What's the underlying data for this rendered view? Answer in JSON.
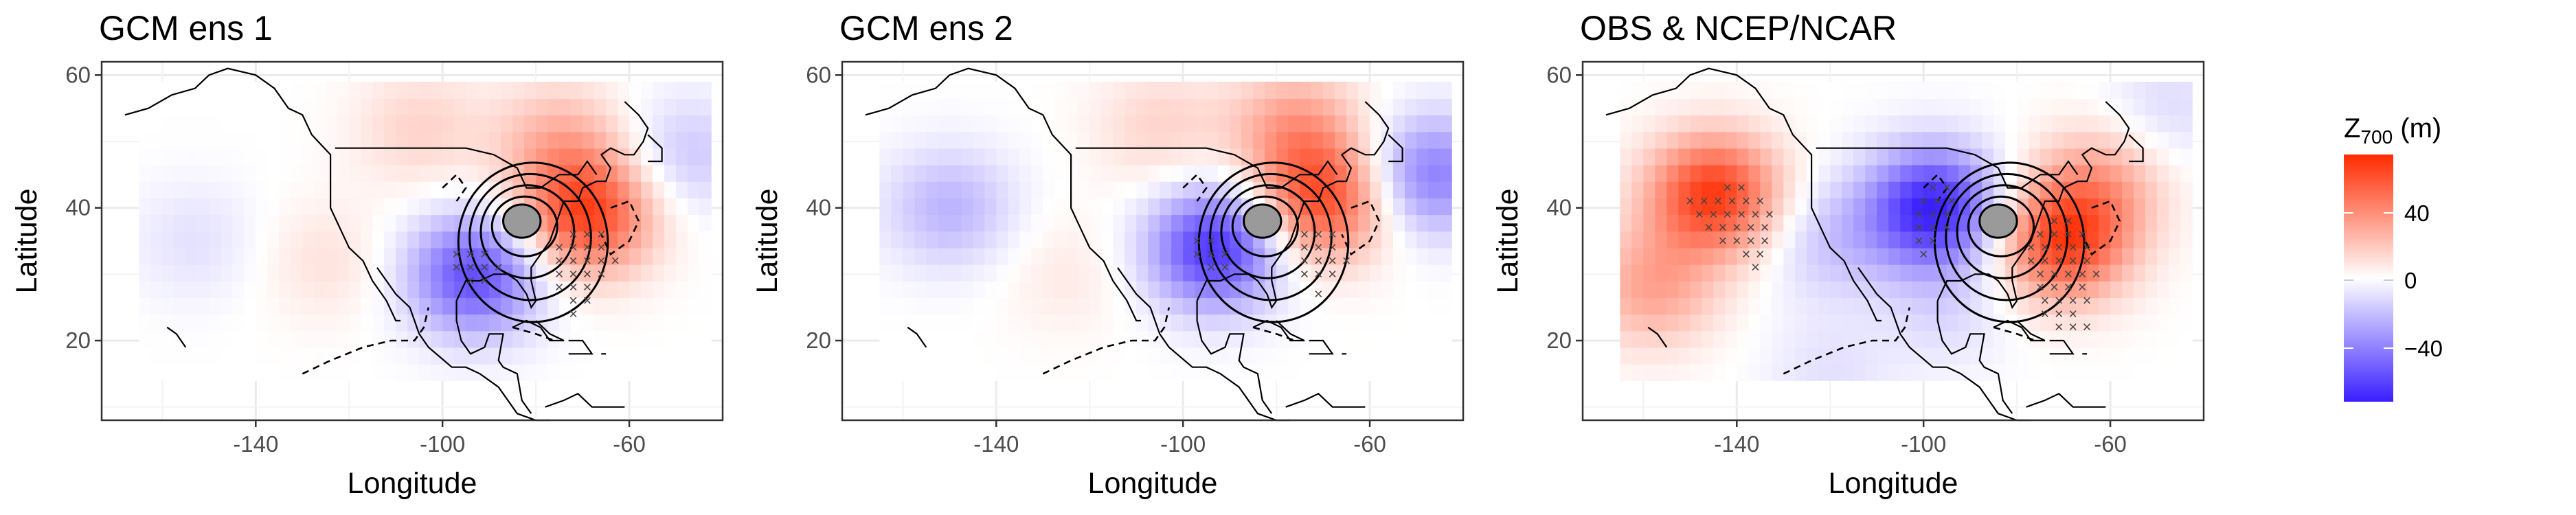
{
  "figure": {
    "x_tick_labels": [
      "-140",
      "-100",
      "-60"
    ],
    "y_tick_labels": [
      "60",
      "40",
      "20"
    ]
  },
  "legend": {
    "title_main": "Z",
    "title_sub": "700",
    "title_unit": " (m)",
    "labels": [
      "40",
      "0",
      "−40"
    ],
    "colors": {
      "high": "#ff2a00",
      "mid": "#ffffff",
      "low": "#3a1fff"
    }
  },
  "chart_data": [
    {
      "type": "heatmap",
      "title": "GCM ens 1",
      "xlabel": "Longitude",
      "ylabel": "Latitude",
      "xlim": [
        -173,
        -40
      ],
      "ylim": [
        8,
        62
      ],
      "x_ticks": [
        -140,
        -100,
        -60
      ],
      "y_ticks": [
        20,
        40,
        60
      ],
      "fill_range": [
        -60,
        60
      ],
      "anomaly_centers": [
        {
          "lon": -153,
          "lat": 35,
          "value": -8
        },
        {
          "lon": -125,
          "lat": 32,
          "value": 8
        },
        {
          "lon": -93,
          "lat": 30,
          "value": -48
        },
        {
          "lon": -69,
          "lat": 39,
          "value": 52
        },
        {
          "lon": -75,
          "lat": 50,
          "value": 20
        },
        {
          "lon": -48,
          "lat": 48,
          "value": -15
        },
        {
          "lon": -105,
          "lat": 52,
          "value": 12
        }
      ],
      "contour_center": {
        "lon": -83,
        "lat": 38
      },
      "significance": [
        {
          "row_lat": 33,
          "lons": [
            -97,
            -94,
            -91
          ]
        },
        {
          "row_lat": 31,
          "lons": [
            -97,
            -94,
            -91,
            -88
          ]
        },
        {
          "row_lat": 29,
          "lons": [
            -94,
            -91
          ]
        },
        {
          "row_lat": 36,
          "lons": [
            -72,
            -69,
            -66
          ]
        },
        {
          "row_lat": 34,
          "lons": [
            -75,
            -72,
            -69,
            -66
          ]
        },
        {
          "row_lat": 32,
          "lons": [
            -75,
            -72,
            -69,
            -66,
            -63
          ]
        },
        {
          "row_lat": 30,
          "lons": [
            -75,
            -72,
            -69,
            -66
          ]
        },
        {
          "row_lat": 28,
          "lons": [
            -75,
            -72,
            -69
          ]
        },
        {
          "row_lat": 26,
          "lons": [
            -72,
            -69
          ]
        },
        {
          "row_lat": 24,
          "lons": [
            -72
          ]
        }
      ]
    },
    {
      "type": "heatmap",
      "title": "GCM ens 2",
      "xlabel": "Longitude",
      "ylabel": "Latitude",
      "xlim": [
        -173,
        -40
      ],
      "ylim": [
        8,
        62
      ],
      "x_ticks": [
        -140,
        -100,
        -60
      ],
      "y_ticks": [
        20,
        40,
        60
      ],
      "fill_range": [
        -60,
        60
      ],
      "anomaly_centers": [
        {
          "lon": -150,
          "lat": 40,
          "value": -20
        },
        {
          "lon": -125,
          "lat": 30,
          "value": 6
        },
        {
          "lon": -93,
          "lat": 34,
          "value": -55
        },
        {
          "lon": -70,
          "lat": 41,
          "value": 48
        },
        {
          "lon": -76,
          "lat": 52,
          "value": 26
        },
        {
          "lon": -47,
          "lat": 45,
          "value": -35
        },
        {
          "lon": -105,
          "lat": 52,
          "value": 12
        }
      ],
      "contour_center": {
        "lon": -83,
        "lat": 38
      },
      "significance": [
        {
          "row_lat": 35,
          "lons": [
            -97,
            -94
          ]
        },
        {
          "row_lat": 33,
          "lons": [
            -97,
            -94,
            -91
          ]
        },
        {
          "row_lat": 31,
          "lons": [
            -94,
            -91
          ]
        },
        {
          "row_lat": 36,
          "lons": [
            -74,
            -71,
            -68
          ]
        },
        {
          "row_lat": 34,
          "lons": [
            -74,
            -71,
            -68
          ]
        },
        {
          "row_lat": 32,
          "lons": [
            -74,
            -71,
            -68,
            -65
          ]
        },
        {
          "row_lat": 30,
          "lons": [
            -74,
            -71,
            -68
          ]
        },
        {
          "row_lat": 27,
          "lons": [
            -71
          ]
        }
      ]
    },
    {
      "type": "heatmap",
      "title": "OBS & NCEP/NCAR",
      "xlabel": "Longitude",
      "ylabel": "Latitude",
      "xlim": [
        -173,
        -40
      ],
      "ylim": [
        8,
        62
      ],
      "x_ticks": [
        -140,
        -100,
        -60
      ],
      "y_ticks": [
        20,
        40,
        60
      ],
      "fill_range": [
        -60,
        60
      ],
      "anomaly_centers": [
        {
          "lon": -145,
          "lat": 42,
          "value": 55
        },
        {
          "lon": -158,
          "lat": 28,
          "value": 25
        },
        {
          "lon": -120,
          "lat": 35,
          "value": -15
        },
        {
          "lon": -98,
          "lat": 40,
          "value": -60
        },
        {
          "lon": -95,
          "lat": 25,
          "value": -10
        },
        {
          "lon": -70,
          "lat": 35,
          "value": 52
        },
        {
          "lon": -62,
          "lat": 44,
          "value": 22
        },
        {
          "lon": -120,
          "lat": 15,
          "value": -8
        },
        {
          "lon": -48,
          "lat": 55,
          "value": -10
        }
      ],
      "contour_center": {
        "lon": -84,
        "lat": 38
      },
      "significance": [
        {
          "row_lat": 43,
          "lons": [
            -142,
            -139
          ]
        },
        {
          "row_lat": 41,
          "lons": [
            -150,
            -147,
            -144,
            -141,
            -138,
            -135
          ]
        },
        {
          "row_lat": 39,
          "lons": [
            -148,
            -145,
            -142,
            -139,
            -136,
            -133
          ]
        },
        {
          "row_lat": 37,
          "lons": [
            -146,
            -143,
            -140,
            -137,
            -134
          ]
        },
        {
          "row_lat": 35,
          "lons": [
            -143,
            -140,
            -137,
            -134
          ]
        },
        {
          "row_lat": 33,
          "lons": [
            -138,
            -135
          ]
        },
        {
          "row_lat": 31,
          "lons": [
            -136
          ]
        },
        {
          "row_lat": 43,
          "lons": [
            -98,
            -95
          ]
        },
        {
          "row_lat": 41,
          "lons": [
            -100,
            -97,
            -94
          ]
        },
        {
          "row_lat": 39,
          "lons": [
            -101,
            -98,
            -95
          ]
        },
        {
          "row_lat": 37,
          "lons": [
            -101,
            -98,
            -95
          ]
        },
        {
          "row_lat": 35,
          "lons": [
            -101,
            -98
          ]
        },
        {
          "row_lat": 33,
          "lons": [
            -100
          ]
        },
        {
          "row_lat": 38,
          "lons": [
            -72,
            -69
          ]
        },
        {
          "row_lat": 36,
          "lons": [
            -75,
            -72,
            -69,
            -66
          ]
        },
        {
          "row_lat": 34,
          "lons": [
            -77,
            -74,
            -71,
            -68,
            -65
          ]
        },
        {
          "row_lat": 32,
          "lons": [
            -77,
            -74,
            -71,
            -68,
            -65
          ]
        },
        {
          "row_lat": 30,
          "lons": [
            -75,
            -72,
            -69,
            -66,
            -63
          ]
        },
        {
          "row_lat": 28,
          "lons": [
            -75,
            -72,
            -69,
            -66
          ]
        },
        {
          "row_lat": 26,
          "lons": [
            -74,
            -71,
            -68,
            -65
          ]
        },
        {
          "row_lat": 24,
          "lons": [
            -74,
            -71,
            -68
          ]
        },
        {
          "row_lat": 22,
          "lons": [
            -71,
            -68,
            -65
          ]
        }
      ]
    }
  ]
}
